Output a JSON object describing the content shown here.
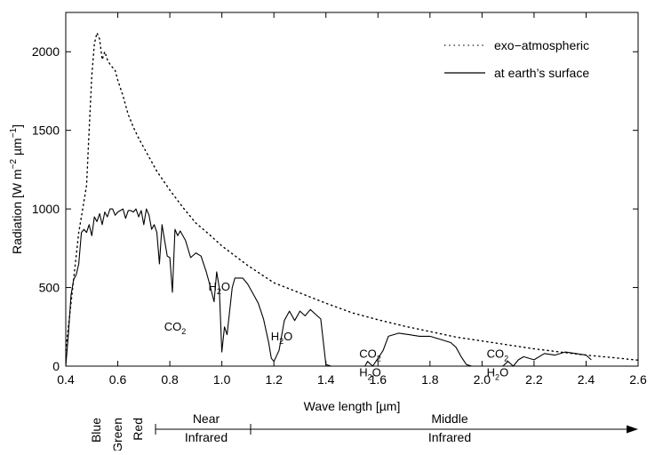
{
  "chart_data": {
    "type": "line",
    "xlabel": "Wave length [µm]",
    "ylabel": {
      "main": "Radiation [W m",
      "sup1": "−2",
      "mid": " µm",
      "sup2": "−1",
      "end": "]"
    },
    "xlim": [
      0.4,
      2.6
    ],
    "ylim": [
      0,
      2250
    ],
    "xticks": [
      "0.4",
      "0.6",
      "0.8",
      "1.0",
      "1.2",
      "1.4",
      "1.6",
      "1.8",
      "2.0",
      "2.2",
      "2.4",
      "2.6"
    ],
    "yticks": [
      "0",
      "500",
      "1000",
      "1500",
      "2000"
    ],
    "grid": false,
    "legend_position": "top-right",
    "series": [
      {
        "name": "exo−atmospheric",
        "style": "dotted",
        "x": [
          0.4,
          0.42,
          0.44,
          0.45,
          0.46,
          0.47,
          0.48,
          0.49,
          0.5,
          0.51,
          0.52,
          0.53,
          0.54,
          0.55,
          0.56,
          0.57,
          0.58,
          0.59,
          0.6,
          0.62,
          0.64,
          0.66,
          0.68,
          0.7,
          0.75,
          0.8,
          0.85,
          0.9,
          0.95,
          1.0,
          1.1,
          1.2,
          1.3,
          1.4,
          1.5,
          1.6,
          1.7,
          1.8,
          1.9,
          2.0,
          2.1,
          2.2,
          2.3,
          2.4,
          2.5,
          2.6
        ],
        "y": [
          100,
          400,
          700,
          850,
          950,
          1050,
          1150,
          1500,
          1850,
          2050,
          2120,
          2080,
          1950,
          2000,
          1950,
          1920,
          1900,
          1880,
          1820,
          1720,
          1600,
          1520,
          1450,
          1390,
          1240,
          1120,
          1010,
          910,
          840,
          765,
          640,
          530,
          465,
          400,
          340,
          295,
          255,
          220,
          185,
          160,
          135,
          110,
          90,
          70,
          55,
          38
        ]
      },
      {
        "name": "at earth’s surface",
        "style": "solid",
        "x": [
          0.4,
          0.41,
          0.42,
          0.43,
          0.44,
          0.45,
          0.46,
          0.47,
          0.48,
          0.49,
          0.5,
          0.51,
          0.52,
          0.53,
          0.54,
          0.55,
          0.56,
          0.57,
          0.58,
          0.59,
          0.6,
          0.62,
          0.63,
          0.64,
          0.65,
          0.66,
          0.67,
          0.68,
          0.69,
          0.7,
          0.71,
          0.72,
          0.73,
          0.74,
          0.75,
          0.76,
          0.77,
          0.78,
          0.79,
          0.8,
          0.81,
          0.82,
          0.83,
          0.84,
          0.86,
          0.88,
          0.9,
          0.92,
          0.94,
          0.95,
          0.97,
          0.98,
          0.99,
          1.0,
          1.01,
          1.02,
          1.04,
          1.05,
          1.06,
          1.08,
          1.1,
          1.12,
          1.14,
          1.16,
          1.18,
          1.19,
          1.2,
          1.22,
          1.24,
          1.26,
          1.28,
          1.3,
          1.32,
          1.34,
          1.36,
          1.38,
          1.4,
          1.42,
          1.44,
          1.48,
          1.52,
          1.55,
          1.56,
          1.58,
          1.6,
          1.62,
          1.64,
          1.68,
          1.72,
          1.76,
          1.8,
          1.84,
          1.88,
          1.9,
          1.92,
          1.94,
          1.96,
          2.0,
          2.04,
          2.08,
          2.1,
          2.12,
          2.14,
          2.16,
          2.2,
          2.24,
          2.28,
          2.32,
          2.36,
          2.4,
          2.42
        ],
        "y": [
          0,
          200,
          450,
          550,
          580,
          650,
          850,
          870,
          850,
          900,
          830,
          950,
          920,
          970,
          900,
          980,
          950,
          1000,
          1000,
          960,
          980,
          1000,
          940,
          990,
          990,
          980,
          1000,
          950,
          990,
          900,
          1000,
          960,
          870,
          900,
          850,
          650,
          900,
          800,
          700,
          690,
          470,
          870,
          830,
          860,
          800,
          690,
          720,
          700,
          600,
          540,
          410,
          600,
          500,
          90,
          250,
          200,
          500,
          560,
          560,
          560,
          520,
          460,
          400,
          300,
          150,
          50,
          30,
          100,
          290,
          350,
          290,
          350,
          320,
          360,
          330,
          300,
          10,
          0,
          0,
          0,
          0,
          0,
          30,
          0,
          50,
          100,
          190,
          210,
          200,
          190,
          190,
          170,
          150,
          120,
          60,
          10,
          0,
          0,
          0,
          0,
          30,
          0,
          40,
          60,
          40,
          80,
          70,
          90,
          80,
          70,
          40
        ]
      }
    ],
    "annotations": [
      {
        "base": "CO",
        "sub": "2",
        "x": 0.82,
        "y": 225
      },
      {
        "base": "H",
        "sub": "2",
        "after": "O",
        "x": 0.99,
        "y": 480
      },
      {
        "base": "H",
        "sub": "2",
        "after": "O",
        "x": 1.23,
        "y": 165
      },
      {
        "base": "CO",
        "sub": "2",
        "x": 1.57,
        "y": 55
      },
      {
        "base": "H",
        "sub": "2",
        "after": "O",
        "x": 1.57,
        "y": -65
      },
      {
        "base": "CO",
        "sub": "2",
        "x": 2.06,
        "y": 55
      },
      {
        "base": "H",
        "sub": "2",
        "after": "O",
        "x": 2.06,
        "y": -65
      }
    ],
    "bands": [
      {
        "label": "Blue"
      },
      {
        "label": "Green"
      },
      {
        "label": "Red"
      },
      {
        "label_line1": "Near",
        "label_line2": "Infrared"
      },
      {
        "label_line1": "Middle",
        "label_line2": "Infrared"
      }
    ]
  }
}
